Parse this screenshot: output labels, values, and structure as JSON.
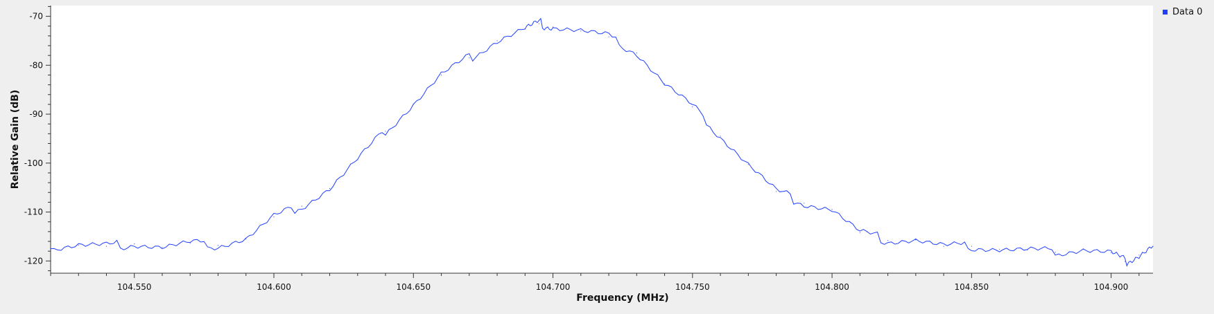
{
  "chart_data": {
    "type": "line",
    "title": "",
    "xlabel": "Frequency (MHz)",
    "ylabel": "Relative Gain (dB)",
    "xlim": [
      104.52,
      104.915
    ],
    "ylim": [
      -122.5,
      -67.8
    ],
    "x_ticks": [
      104.55,
      104.6,
      104.65,
      104.7,
      104.75,
      104.8,
      104.85,
      104.9
    ],
    "x_tick_labels": [
      "104.550",
      "104.600",
      "104.650",
      "104.700",
      "104.750",
      "104.800",
      "104.850",
      "104.900"
    ],
    "y_ticks": [
      -70,
      -80,
      -90,
      -100,
      -110,
      -120
    ],
    "y_tick_labels": [
      "-70",
      "-80",
      "-90",
      "-100",
      "-110",
      "-120"
    ],
    "grid": false,
    "legend_position": "top-right",
    "colors": {
      "series": "#1f3fff",
      "plot_background": "#ffffff",
      "page_background": "#efefef",
      "axis": "#333333"
    },
    "series": [
      {
        "name": "Data 0",
        "x": [
          104.52,
          104.53,
          104.54,
          104.55,
          104.56,
          104.57,
          104.58,
          104.59,
          104.6,
          104.61,
          104.62,
          104.63,
          104.64,
          104.65,
          104.66,
          104.67,
          104.68,
          104.69,
          104.695,
          104.7,
          104.71,
          104.72,
          104.73,
          104.74,
          104.75,
          104.76,
          104.77,
          104.78,
          104.79,
          104.8,
          104.81,
          104.82,
          104.83,
          104.84,
          104.85,
          104.86,
          104.87,
          104.88,
          104.89,
          104.9,
          104.905,
          104.91,
          104.915
        ],
        "y": [
          -117.5,
          -116.8,
          -117.0,
          -116.5,
          -117.2,
          -116.4,
          -116.8,
          -115.5,
          -111.0,
          -108.8,
          -105.2,
          -99.3,
          -93.5,
          -88.0,
          -82.0,
          -78.5,
          -75.0,
          -72.5,
          -71.5,
          -72.2,
          -73.0,
          -74.2,
          -77.5,
          -83.8,
          -88.5,
          -94.5,
          -100.3,
          -105.8,
          -108.2,
          -109.5,
          -114.2,
          -115.8,
          -115.7,
          -117.0,
          -117.0,
          -117.6,
          -117.8,
          -118.2,
          -117.6,
          -118.3,
          -120.1,
          -118.8,
          -117.0
        ]
      }
    ]
  }
}
